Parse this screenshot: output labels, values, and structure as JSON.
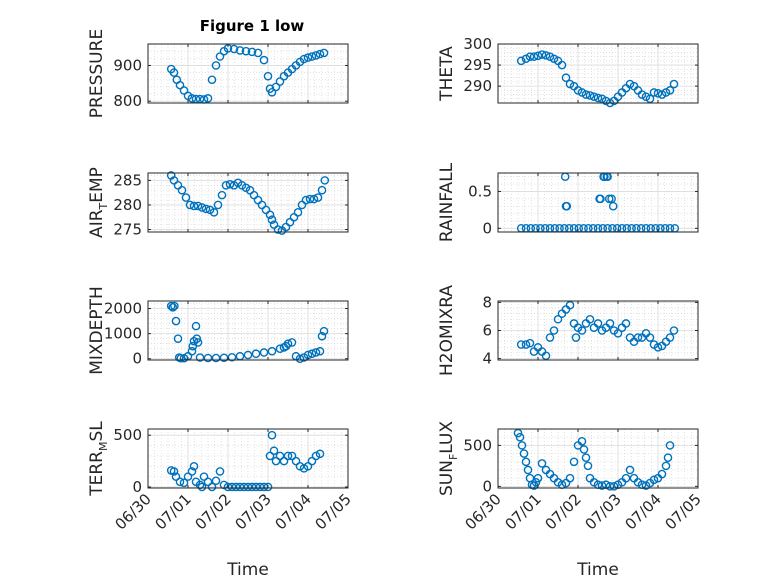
{
  "figure_title": "Figure 1 low",
  "x_ticks": [
    "06/30",
    "07/01",
    "07/02",
    "07/03",
    "07/04",
    "07/05"
  ],
  "x_label": "Time",
  "chart_data": [
    {
      "type": "scatter",
      "title": "Figure 1 low",
      "ylabel": "PRESSURE",
      "ylabel_sub": "",
      "xlabel": "",
      "xlim": [
        0,
        5
      ],
      "ylim": [
        795,
        960
      ],
      "yticks": [
        800,
        900
      ],
      "grid": true,
      "marker": "circle-open",
      "color": "#0072BD",
      "x": [
        0.58,
        0.65,
        0.72,
        0.8,
        0.9,
        1.0,
        1.1,
        1.2,
        1.3,
        1.4,
        1.5,
        1.6,
        1.7,
        1.8,
        1.9,
        2.0,
        2.15,
        2.3,
        2.45,
        2.6,
        2.75,
        2.9,
        3.0,
        3.05,
        3.1,
        3.2,
        3.3,
        3.4,
        3.5,
        3.6,
        3.7,
        3.8,
        3.9,
        4.0,
        4.1,
        4.2,
        4.3,
        4.4
      ],
      "y": [
        890,
        880,
        860,
        845,
        830,
        815,
        808,
        806,
        806,
        805,
        808,
        860,
        900,
        925,
        940,
        948,
        946,
        942,
        940,
        938,
        935,
        915,
        870,
        835,
        825,
        840,
        855,
        870,
        880,
        890,
        900,
        910,
        918,
        922,
        925,
        928,
        932,
        935
      ]
    },
    {
      "type": "scatter",
      "title": "",
      "ylabel": "THETA",
      "ylabel_sub": "",
      "xlabel": "",
      "xlim": [
        0,
        5
      ],
      "ylim": [
        286,
        300
      ],
      "yticks": [
        290,
        295,
        300
      ],
      "grid": true,
      "marker": "circle-open",
      "color": "#0072BD",
      "x": [
        0.58,
        0.7,
        0.8,
        0.9,
        1.0,
        1.1,
        1.2,
        1.3,
        1.4,
        1.5,
        1.6,
        1.7,
        1.8,
        1.9,
        2.0,
        2.1,
        2.2,
        2.3,
        2.4,
        2.5,
        2.6,
        2.7,
        2.8,
        2.9,
        3.0,
        3.1,
        3.2,
        3.3,
        3.4,
        3.5,
        3.6,
        3.7,
        3.8,
        3.9,
        4.0,
        4.1,
        4.2,
        4.3,
        4.4
      ],
      "y": [
        296,
        296.5,
        297,
        297,
        297.2,
        297.5,
        297.3,
        297,
        296.5,
        296,
        295,
        292,
        290.5,
        290,
        289,
        288.5,
        288,
        287.8,
        287.5,
        287.2,
        287,
        286.5,
        286,
        286.5,
        287.5,
        288.5,
        289.5,
        290.5,
        290,
        289,
        288,
        287.5,
        287,
        288.5,
        288.3,
        288,
        288.5,
        289,
        290.5
      ]
    },
    {
      "type": "scatter",
      "title": "",
      "ylabel": "AIR",
      "ylabel_sub": "T",
      "ylabel_suffix": "EMP",
      "xlabel": "",
      "xlim": [
        0,
        5
      ],
      "ylim": [
        274.5,
        286.5
      ],
      "yticks": [
        275,
        280,
        285
      ],
      "grid": true,
      "marker": "circle-open",
      "color": "#0072BD",
      "x": [
        0.58,
        0.65,
        0.75,
        0.85,
        0.95,
        1.05,
        1.15,
        1.25,
        1.35,
        1.45,
        1.55,
        1.65,
        1.75,
        1.85,
        1.95,
        2.05,
        2.15,
        2.25,
        2.35,
        2.45,
        2.55,
        2.65,
        2.75,
        2.85,
        2.95,
        3.05,
        3.1,
        3.15,
        3.25,
        3.35,
        3.45,
        3.55,
        3.65,
        3.75,
        3.85,
        3.95,
        4.05,
        4.15,
        4.25,
        4.35,
        4.42
      ],
      "y": [
        286,
        285,
        284,
        283,
        281.5,
        280,
        279.8,
        279.8,
        279.5,
        279.2,
        279,
        278.5,
        280,
        282,
        284,
        284.2,
        284,
        284.5,
        284,
        283.5,
        283,
        282,
        281,
        280,
        279,
        278,
        277,
        276,
        275,
        274.8,
        275.5,
        276.5,
        277.5,
        278.5,
        280,
        281,
        281.2,
        281.2,
        281.5,
        283,
        285
      ]
    },
    {
      "type": "scatter",
      "title": "",
      "ylabel": "RAINFALL",
      "ylabel_sub": "",
      "xlabel": "",
      "xlim": [
        0,
        5
      ],
      "ylim": [
        -0.05,
        0.75
      ],
      "yticks": [
        0,
        0.5
      ],
      "grid": true,
      "marker": "circle-open",
      "color": "#0072BD",
      "x": [
        0.58,
        0.7,
        0.82,
        0.94,
        1.06,
        1.18,
        1.3,
        1.42,
        1.54,
        1.66,
        1.78,
        1.9,
        2.02,
        2.14,
        2.26,
        2.38,
        2.5,
        2.62,
        2.74,
        2.86,
        2.98,
        3.1,
        3.22,
        3.34,
        3.46,
        3.58,
        3.7,
        3.82,
        3.94,
        4.06,
        4.18,
        4.3,
        4.42,
        1.68,
        1.7,
        1.72,
        2.54,
        2.56,
        2.64,
        2.66,
        2.72,
        2.74,
        2.78,
        2.84,
        2.88
      ],
      "y": [
        0,
        0,
        0,
        0,
        0,
        0,
        0,
        0,
        0,
        0,
        0,
        0,
        0,
        0,
        0,
        0,
        0,
        0,
        0,
        0,
        0,
        0,
        0,
        0,
        0,
        0,
        0,
        0,
        0,
        0,
        0,
        0,
        0,
        0.7,
        0.3,
        0.3,
        0.4,
        0.4,
        0.7,
        0.7,
        0.7,
        0.7,
        0.4,
        0.4,
        0.3
      ]
    },
    {
      "type": "scatter",
      "title": "",
      "ylabel": "MIXDEPTH",
      "ylabel_sub": "",
      "xlabel": "",
      "xlim": [
        0,
        5
      ],
      "ylim": [
        -50,
        2300
      ],
      "yticks": [
        0,
        1000,
        2000
      ],
      "grid": true,
      "marker": "circle-open",
      "color": "#0072BD",
      "x": [
        0.58,
        0.62,
        0.66,
        0.7,
        0.75,
        0.78,
        0.82,
        0.9,
        1.0,
        1.1,
        1.12,
        1.15,
        1.2,
        1.22,
        1.25,
        1.3,
        1.5,
        1.7,
        1.9,
        2.1,
        2.3,
        2.5,
        2.7,
        2.9,
        3.1,
        3.3,
        3.4,
        3.45,
        3.5,
        3.6,
        3.7,
        3.8,
        3.9,
        4.0,
        4.1,
        4.2,
        4.3,
        4.35,
        4.4
      ],
      "y": [
        2100,
        2050,
        2100,
        1500,
        800,
        50,
        20,
        20,
        100,
        300,
        500,
        700,
        1300,
        800,
        650,
        50,
        30,
        30,
        40,
        60,
        100,
        150,
        200,
        250,
        300,
        400,
        450,
        500,
        600,
        650,
        100,
        0,
        50,
        150,
        200,
        250,
        300,
        900,
        1100
      ]
    },
    {
      "type": "scatter",
      "title": "",
      "ylabel": "H2OMIXRA",
      "ylabel_sub": "",
      "xlabel": "",
      "xlim": [
        0,
        5
      ],
      "ylim": [
        3.9,
        8.1
      ],
      "yticks": [
        4,
        6,
        8
      ],
      "grid": true,
      "marker": "circle-open",
      "color": "#0072BD",
      "x": [
        0.58,
        0.7,
        0.8,
        0.9,
        1.0,
        1.1,
        1.2,
        1.3,
        1.4,
        1.5,
        1.6,
        1.7,
        1.8,
        1.9,
        1.95,
        2.0,
        2.1,
        2.2,
        2.3,
        2.4,
        2.5,
        2.6,
        2.7,
        2.8,
        2.9,
        3.0,
        3.1,
        3.2,
        3.3,
        3.4,
        3.5,
        3.6,
        3.7,
        3.8,
        3.9,
        4.0,
        4.1,
        4.2,
        4.3,
        4.4
      ],
      "y": [
        5,
        5,
        5.1,
        4.5,
        4.8,
        4.5,
        4.2,
        5.5,
        6,
        6.8,
        7.2,
        7.5,
        7.8,
        6.5,
        5.5,
        6.2,
        6,
        6.5,
        6.8,
        6.2,
        6.5,
        6,
        6.2,
        6.5,
        6,
        5.8,
        6.2,
        6.5,
        5.5,
        5.2,
        5.5,
        5.5,
        5.8,
        5.5,
        5,
        4.8,
        4.9,
        5.2,
        5.5,
        6
      ]
    },
    {
      "type": "scatter",
      "title": "",
      "ylabel": "TERR",
      "ylabel_sub": "M",
      "ylabel_suffix": "SL",
      "xlabel": "",
      "xlim": [
        0,
        5
      ],
      "ylim": [
        -10,
        560
      ],
      "yticks": [
        0,
        500
      ],
      "grid": true,
      "marker": "circle-open",
      "color": "#0072BD",
      "x": [
        0.58,
        0.65,
        0.7,
        0.8,
        0.9,
        1.0,
        1.1,
        1.15,
        1.2,
        1.3,
        1.35,
        1.4,
        1.5,
        1.6,
        1.7,
        1.8,
        1.9,
        2.0,
        2.1,
        2.2,
        2.3,
        2.4,
        2.5,
        2.6,
        2.7,
        2.8,
        2.9,
        3.0,
        3.05,
        3.1,
        3.15,
        3.2,
        3.3,
        3.4,
        3.5,
        3.6,
        3.7,
        3.8,
        3.9,
        4.0,
        4.1,
        4.2,
        4.3
      ],
      "y": [
        160,
        150,
        100,
        50,
        40,
        100,
        150,
        200,
        50,
        20,
        0,
        100,
        50,
        0,
        60,
        150,
        20,
        0,
        0,
        0,
        0,
        0,
        0,
        0,
        0,
        0,
        0,
        0,
        300,
        500,
        350,
        250,
        300,
        250,
        300,
        300,
        250,
        200,
        180,
        200,
        250,
        300,
        320
      ]
    },
    {
      "type": "scatter",
      "title": "",
      "ylabel": "SUN",
      "ylabel_sub": "F",
      "ylabel_suffix": "LUX",
      "xlabel": "",
      "xlim": [
        0,
        5
      ],
      "ylim": [
        -20,
        700
      ],
      "yticks": [
        0,
        500
      ],
      "grid": true,
      "marker": "circle-open",
      "color": "#0072BD",
      "x": [
        0.5,
        0.55,
        0.6,
        0.65,
        0.7,
        0.75,
        0.8,
        0.85,
        0.9,
        0.95,
        1.0,
        1.1,
        1.2,
        1.3,
        1.4,
        1.5,
        1.6,
        1.7,
        1.8,
        1.9,
        2.0,
        2.1,
        2.15,
        2.2,
        2.25,
        2.3,
        2.4,
        2.5,
        2.6,
        2.7,
        2.8,
        2.9,
        3.0,
        3.1,
        3.2,
        3.3,
        3.4,
        3.5,
        3.6,
        3.7,
        3.8,
        3.9,
        4.0,
        4.1,
        4.2,
        4.25,
        4.3
      ],
      "y": [
        650,
        600,
        500,
        400,
        300,
        200,
        100,
        20,
        10,
        50,
        100,
        280,
        200,
        150,
        100,
        50,
        20,
        40,
        100,
        300,
        500,
        550,
        450,
        350,
        250,
        100,
        50,
        20,
        10,
        20,
        0,
        0,
        20,
        50,
        100,
        200,
        100,
        50,
        20,
        10,
        40,
        80,
        100,
        150,
        250,
        350,
        500
      ]
    }
  ]
}
